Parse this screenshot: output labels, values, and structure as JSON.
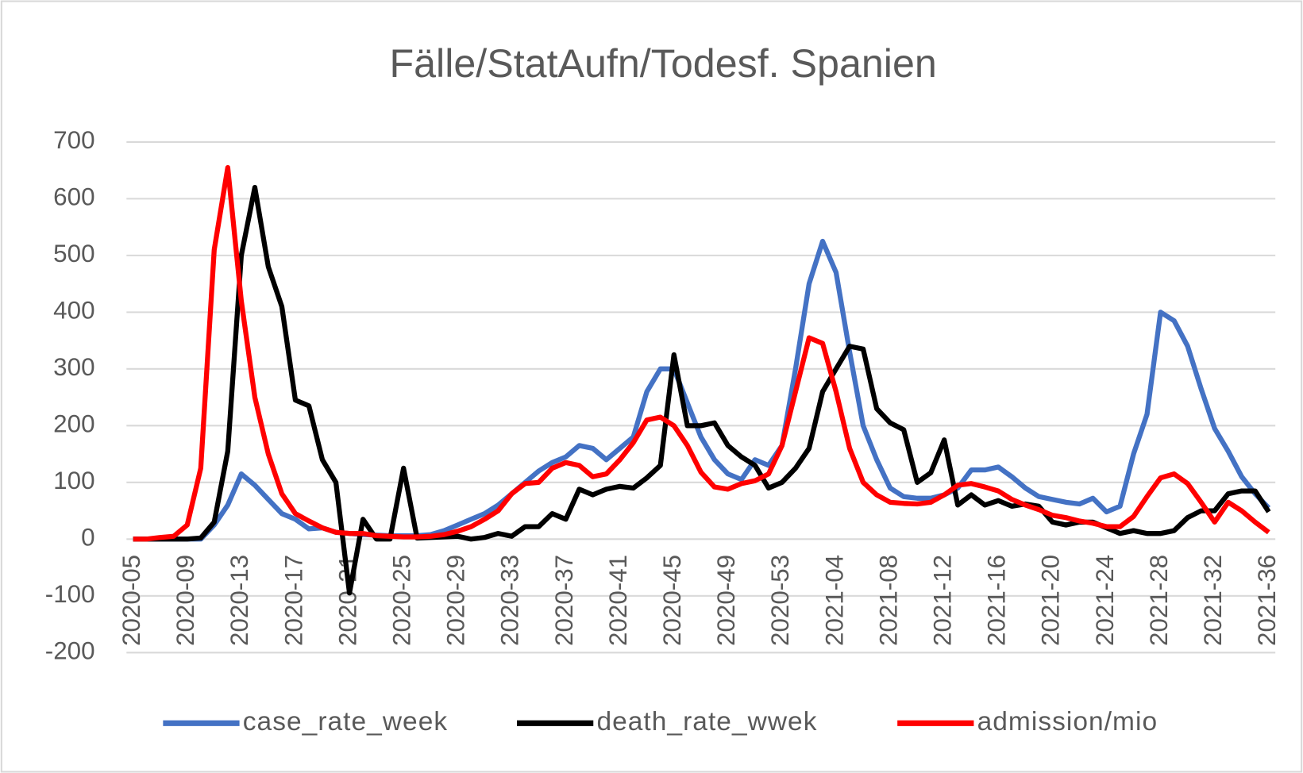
{
  "chart_data": {
    "type": "line",
    "title": "Fälle/StatAufn/Todesf. Spanien",
    "categories": [
      "2020-05",
      null,
      null,
      null,
      "2020-09",
      null,
      null,
      null,
      "2020-13",
      null,
      null,
      null,
      "2020-17",
      null,
      null,
      null,
      "2020-21",
      null,
      null,
      null,
      "2020-25",
      null,
      null,
      null,
      "2020-29",
      null,
      null,
      null,
      "2020-33",
      null,
      null,
      null,
      "2020-37",
      null,
      null,
      null,
      "2020-41",
      null,
      null,
      null,
      "2020-45",
      null,
      null,
      null,
      "2020-49",
      null,
      null,
      null,
      "2020-53",
      null,
      null,
      null,
      "2021-04",
      null,
      null,
      null,
      "2021-08",
      null,
      null,
      null,
      "2021-12",
      null,
      null,
      null,
      "2021-16",
      null,
      null,
      null,
      "2021-20",
      null,
      null,
      null,
      "2021-24",
      null,
      null,
      null,
      "2021-28",
      null,
      null,
      null,
      "2021-32",
      null,
      null,
      null,
      "2021-36"
    ],
    "series": [
      {
        "name": "case_rate_week",
        "color": "#4472c4",
        "values": [
          0,
          0,
          0,
          0,
          0,
          0,
          25,
          60,
          115,
          95,
          70,
          45,
          35,
          18,
          20,
          12,
          10,
          8,
          7,
          6,
          6,
          6,
          8,
          15,
          25,
          35,
          45,
          60,
          80,
          100,
          120,
          135,
          145,
          165,
          160,
          140,
          160,
          180,
          260,
          300,
          300,
          240,
          180,
          140,
          115,
          105,
          140,
          130,
          165,
          300,
          450,
          525,
          470,
          330,
          200,
          140,
          90,
          75,
          72,
          72,
          78,
          90,
          122,
          122,
          127,
          110,
          90,
          75,
          70,
          65,
          62,
          72,
          48,
          58,
          150,
          220,
          400,
          385,
          340,
          265,
          195,
          155,
          110,
          80,
          55
        ]
      },
      {
        "name": "death_rate_wwek",
        "color": "#000000",
        "values": [
          0,
          0,
          0,
          0,
          0,
          2,
          30,
          155,
          500,
          620,
          480,
          410,
          245,
          235,
          140,
          100,
          -95,
          35,
          0,
          0,
          125,
          2,
          3,
          4,
          5,
          0,
          3,
          10,
          5,
          22,
          22,
          45,
          35,
          88,
          78,
          88,
          93,
          90,
          108,
          130,
          325,
          200,
          200,
          205,
          165,
          145,
          130,
          90,
          100,
          125,
          160,
          260,
          300,
          340,
          335,
          230,
          205,
          193,
          100,
          117,
          175,
          60,
          78,
          60,
          68,
          58,
          62,
          58,
          30,
          25,
          30,
          30,
          20,
          10,
          15,
          10,
          10,
          15,
          38,
          50,
          50,
          80,
          85,
          85,
          48
        ]
      },
      {
        "name": "admission/mio",
        "color": "#ff0000",
        "values": [
          0,
          0,
          3,
          5,
          25,
          125,
          510,
          655,
          420,
          250,
          150,
          80,
          45,
          32,
          20,
          12,
          10,
          10,
          6,
          5,
          4,
          4,
          5,
          8,
          14,
          22,
          35,
          50,
          80,
          98,
          100,
          125,
          135,
          130,
          110,
          115,
          140,
          170,
          210,
          215,
          200,
          165,
          118,
          92,
          88,
          98,
          103,
          115,
          165,
          260,
          355,
          345,
          260,
          160,
          100,
          78,
          65,
          63,
          62,
          65,
          78,
          95,
          98,
          92,
          85,
          70,
          60,
          52,
          42,
          38,
          32,
          28,
          22,
          22,
          40,
          75,
          108,
          115,
          98,
          65,
          30,
          65,
          50,
          30,
          12
        ]
      }
    ],
    "ylim": [
      -200,
      700
    ],
    "yticks": [
      -200,
      -100,
      0,
      100,
      200,
      300,
      400,
      500,
      600,
      700
    ],
    "grid": true,
    "legend": "bottom"
  }
}
